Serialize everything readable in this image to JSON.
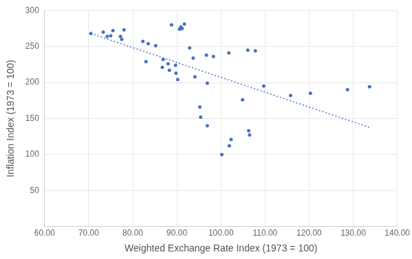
{
  "chart_data": {
    "type": "scatter",
    "x_label": "Weighted Exchange Rate Index (1973 = 100)",
    "y_label": "Inflation Index (1973 = 100)",
    "xlim": [
      60,
      140
    ],
    "xticks": [
      {
        "value": 60,
        "label": "60.00"
      },
      {
        "value": 70,
        "label": "70.00"
      },
      {
        "value": 80,
        "label": "80.00"
      },
      {
        "value": 90,
        "label": "90.00"
      },
      {
        "value": 100,
        "label": "100.00"
      },
      {
        "value": 110,
        "label": "110.00"
      },
      {
        "value": 120,
        "label": "120.00"
      },
      {
        "value": 130,
        "label": "130.00"
      },
      {
        "value": 140,
        "label": "140.00"
      }
    ],
    "ylim": [
      0,
      300
    ],
    "yticks": [
      50,
      100,
      150,
      200,
      250,
      300
    ],
    "grid": true,
    "series": [
      {
        "type": "scatter",
        "color": "#4472c4",
        "marker": "circle",
        "x": [
          70.5,
          73.3,
          74.2,
          75,
          75.5,
          77.2,
          77.5,
          78,
          82.3,
          83,
          83.5,
          85.2,
          86.9,
          86.7,
          88,
          88.3,
          88.8,
          89.7,
          89.8,
          90.2,
          90.6,
          90.9,
          91.2,
          91.7,
          92.9,
          93.7,
          94.1,
          95.2,
          95.4,
          96.7,
          96.9,
          96.9,
          98.3,
          100.2,
          101.8,
          101.9,
          102.3,
          104.9,
          106.1,
          106.3,
          106.5,
          107.8,
          109.7,
          115.8,
          120.3,
          128.7,
          133.7
        ],
        "values": [
          268,
          270,
          264,
          265,
          272,
          264,
          260,
          273,
          257,
          229,
          254,
          251,
          232,
          221,
          226,
          217,
          280,
          224,
          213,
          204,
          274,
          277,
          275,
          281,
          248,
          234,
          208,
          166,
          152,
          238,
          199,
          140,
          236,
          100,
          241,
          112,
          121,
          176,
          245,
          133,
          127,
          244,
          195,
          182,
          185,
          190,
          194
        ]
      },
      {
        "type": "line",
        "color": "#4472c4",
        "line_style": "dotted",
        "x": [
          70.5,
          134
        ],
        "values": [
          268,
          137
        ]
      }
    ]
  }
}
